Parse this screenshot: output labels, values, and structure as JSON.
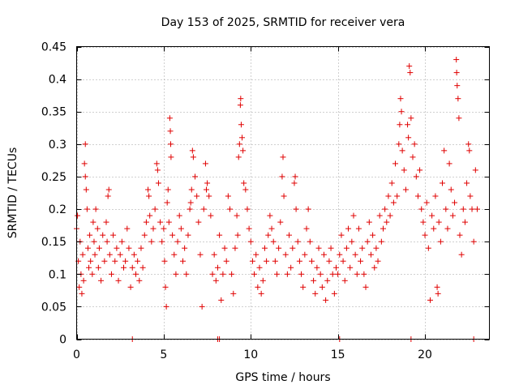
{
  "chart_data": {
    "type": "scatter",
    "title": "Day 153 of 2025, SRMTID for receiver vera",
    "xlabel": "GPS time / hours",
    "ylabel": "SRMTID / TECUs",
    "xlim": [
      0,
      23.7
    ],
    "ylim": [
      0,
      0.45
    ],
    "xticks": [
      0,
      5,
      10,
      15,
      20
    ],
    "xtick_labels": [
      "0",
      "5",
      "10",
      "15",
      "20"
    ],
    "yticks": [
      0,
      0.05,
      0.1,
      0.15,
      0.2,
      0.25,
      0.3,
      0.35,
      0.4,
      0.45
    ],
    "ytick_labels": [
      "0",
      "0.05",
      "0.1",
      "0.15",
      "0.2",
      "0.25",
      "0.3",
      "0.35",
      "0.4",
      "0.45"
    ],
    "grid": true,
    "marker": "+",
    "marker_color": "#e00000",
    "series": [
      {
        "name": "SRMTID",
        "points": [
          [
            0.0,
            0.17
          ],
          [
            0.05,
            0.19
          ],
          [
            0.1,
            0.12
          ],
          [
            0.15,
            0.08
          ],
          [
            0.2,
            0.15
          ],
          [
            0.25,
            0.1
          ],
          [
            0.3,
            0.07
          ],
          [
            0.35,
            0.13
          ],
          [
            0.4,
            0.09
          ],
          [
            0.45,
            0.27
          ],
          [
            0.5,
            0.3
          ],
          [
            0.5,
            0.25
          ],
          [
            0.55,
            0.23
          ],
          [
            0.6,
            0.2
          ],
          [
            0.65,
            0.14
          ],
          [
            0.7,
            0.11
          ],
          [
            0.75,
            0.16
          ],
          [
            0.8,
            0.12
          ],
          [
            0.9,
            0.1
          ],
          [
            0.95,
            0.18
          ],
          [
            1.0,
            0.15
          ],
          [
            1.05,
            0.13
          ],
          [
            1.1,
            0.2
          ],
          [
            1.2,
            0.17
          ],
          [
            1.25,
            0.11
          ],
          [
            1.3,
            0.14
          ],
          [
            1.4,
            0.09
          ],
          [
            1.5,
            0.16
          ],
          [
            1.6,
            0.12
          ],
          [
            1.7,
            0.18
          ],
          [
            1.75,
            0.15
          ],
          [
            1.8,
            0.22
          ],
          [
            1.85,
            0.23
          ],
          [
            1.9,
            0.13
          ],
          [
            2.0,
            0.1
          ],
          [
            2.1,
            0.16
          ],
          [
            2.2,
            0.12
          ],
          [
            2.3,
            0.14
          ],
          [
            2.4,
            0.09
          ],
          [
            2.5,
            0.13
          ],
          [
            2.6,
            0.15
          ],
          [
            2.7,
            0.11
          ],
          [
            2.8,
            0.12
          ],
          [
            2.9,
            0.17
          ],
          [
            3.0,
            0.14
          ],
          [
            3.1,
            0.08
          ],
          [
            3.2,
            0.11
          ],
          [
            3.3,
            0.13
          ],
          [
            3.4,
            0.1
          ],
          [
            3.5,
            0.12
          ],
          [
            3.6,
            0.09
          ],
          [
            3.7,
            0.14
          ],
          [
            3.8,
            0.11
          ],
          [
            3.9,
            0.16
          ],
          [
            4.0,
            0.18
          ],
          [
            4.1,
            0.23
          ],
          [
            4.15,
            0.22
          ],
          [
            4.2,
            0.19
          ],
          [
            4.3,
            0.15
          ],
          [
            4.4,
            0.17
          ],
          [
            4.5,
            0.2
          ],
          [
            4.6,
            0.27
          ],
          [
            4.65,
            0.26
          ],
          [
            4.7,
            0.24
          ],
          [
            4.8,
            0.18
          ],
          [
            4.9,
            0.15
          ],
          [
            5.0,
            0.17
          ],
          [
            5.05,
            0.12
          ],
          [
            5.1,
            0.08
          ],
          [
            5.15,
            0.05
          ],
          [
            5.2,
            0.21
          ],
          [
            5.25,
            0.23
          ],
          [
            5.3,
            0.18
          ],
          [
            5.35,
            0.34
          ],
          [
            5.38,
            0.32
          ],
          [
            5.4,
            0.3
          ],
          [
            5.42,
            0.28
          ],
          [
            5.5,
            0.16
          ],
          [
            5.6,
            0.13
          ],
          [
            5.7,
            0.1
          ],
          [
            5.8,
            0.15
          ],
          [
            5.9,
            0.19
          ],
          [
            6.0,
            0.17
          ],
          [
            6.1,
            0.12
          ],
          [
            6.2,
            0.14
          ],
          [
            6.3,
            0.1
          ],
          [
            6.4,
            0.16
          ],
          [
            6.5,
            0.2
          ],
          [
            6.55,
            0.21
          ],
          [
            6.6,
            0.23
          ],
          [
            6.65,
            0.29
          ],
          [
            6.7,
            0.28
          ],
          [
            6.8,
            0.25
          ],
          [
            6.9,
            0.22
          ],
          [
            7.0,
            0.18
          ],
          [
            7.1,
            0.13
          ],
          [
            7.2,
            0.05
          ],
          [
            7.3,
            0.2
          ],
          [
            7.4,
            0.27
          ],
          [
            7.45,
            0.23
          ],
          [
            7.5,
            0.24
          ],
          [
            7.6,
            0.22
          ],
          [
            7.7,
            0.19
          ],
          [
            7.8,
            0.1
          ],
          [
            7.9,
            0.13
          ],
          [
            8.0,
            0.09
          ],
          [
            8.1,
            0.11
          ],
          [
            8.2,
            0.16
          ],
          [
            8.3,
            0.06
          ],
          [
            8.4,
            0.1
          ],
          [
            8.5,
            0.14
          ],
          [
            8.6,
            0.12
          ],
          [
            8.7,
            0.22
          ],
          [
            8.8,
            0.2
          ],
          [
            8.9,
            0.1
          ],
          [
            9.0,
            0.07
          ],
          [
            9.1,
            0.14
          ],
          [
            9.2,
            0.19
          ],
          [
            9.25,
            0.16
          ],
          [
            9.3,
            0.28
          ],
          [
            9.35,
            0.3
          ],
          [
            9.4,
            0.36
          ],
          [
            9.42,
            0.37
          ],
          [
            9.45,
            0.33
          ],
          [
            9.5,
            0.31
          ],
          [
            9.55,
            0.29
          ],
          [
            9.6,
            0.24
          ],
          [
            9.7,
            0.23
          ],
          [
            9.8,
            0.2
          ],
          [
            9.9,
            0.17
          ],
          [
            10.0,
            0.15
          ],
          [
            10.1,
            0.12
          ],
          [
            10.2,
            0.1
          ],
          [
            10.3,
            0.13
          ],
          [
            10.4,
            0.08
          ],
          [
            10.5,
            0.11
          ],
          [
            10.6,
            0.07
          ],
          [
            10.7,
            0.09
          ],
          [
            10.8,
            0.14
          ],
          [
            10.9,
            0.12
          ],
          [
            11.0,
            0.16
          ],
          [
            11.1,
            0.19
          ],
          [
            11.2,
            0.17
          ],
          [
            11.3,
            0.15
          ],
          [
            11.4,
            0.12
          ],
          [
            11.5,
            0.1
          ],
          [
            11.6,
            0.14
          ],
          [
            11.7,
            0.18
          ],
          [
            11.8,
            0.25
          ],
          [
            11.85,
            0.28
          ],
          [
            11.9,
            0.22
          ],
          [
            12.0,
            0.13
          ],
          [
            12.1,
            0.1
          ],
          [
            12.2,
            0.16
          ],
          [
            12.3,
            0.11
          ],
          [
            12.4,
            0.14
          ],
          [
            12.5,
            0.24
          ],
          [
            12.55,
            0.25
          ],
          [
            12.6,
            0.2
          ],
          [
            12.7,
            0.15
          ],
          [
            12.8,
            0.12
          ],
          [
            12.9,
            0.1
          ],
          [
            13.0,
            0.08
          ],
          [
            13.1,
            0.13
          ],
          [
            13.2,
            0.17
          ],
          [
            13.3,
            0.2
          ],
          [
            13.4,
            0.15
          ],
          [
            13.5,
            0.12
          ],
          [
            13.6,
            0.09
          ],
          [
            13.7,
            0.07
          ],
          [
            13.8,
            0.11
          ],
          [
            13.9,
            0.14
          ],
          [
            14.0,
            0.1
          ],
          [
            14.1,
            0.08
          ],
          [
            14.2,
            0.13
          ],
          [
            14.3,
            0.06
          ],
          [
            14.4,
            0.09
          ],
          [
            14.5,
            0.12
          ],
          [
            14.6,
            0.14
          ],
          [
            14.7,
            0.1
          ],
          [
            14.8,
            0.07
          ],
          [
            14.9,
            0.11
          ],
          [
            15.0,
            0.1
          ],
          [
            15.1,
            0.13
          ],
          [
            15.2,
            0.16
          ],
          [
            15.3,
            0.12
          ],
          [
            15.4,
            0.09
          ],
          [
            15.5,
            0.14
          ],
          [
            15.6,
            0.17
          ],
          [
            15.7,
            0.11
          ],
          [
            15.8,
            0.15
          ],
          [
            15.9,
            0.19
          ],
          [
            16.0,
            0.13
          ],
          [
            16.1,
            0.1
          ],
          [
            16.2,
            0.17
          ],
          [
            16.3,
            0.12
          ],
          [
            16.4,
            0.14
          ],
          [
            16.5,
            0.1
          ],
          [
            16.6,
            0.08
          ],
          [
            16.7,
            0.15
          ],
          [
            16.8,
            0.18
          ],
          [
            16.9,
            0.13
          ],
          [
            17.0,
            0.16
          ],
          [
            17.1,
            0.11
          ],
          [
            17.2,
            0.14
          ],
          [
            17.3,
            0.12
          ],
          [
            17.4,
            0.19
          ],
          [
            17.5,
            0.15
          ],
          [
            17.6,
            0.17
          ],
          [
            17.7,
            0.2
          ],
          [
            17.8,
            0.18
          ],
          [
            17.9,
            0.22
          ],
          [
            18.0,
            0.19
          ],
          [
            18.1,
            0.24
          ],
          [
            18.2,
            0.21
          ],
          [
            18.3,
            0.27
          ],
          [
            18.4,
            0.22
          ],
          [
            18.5,
            0.3
          ],
          [
            18.55,
            0.33
          ],
          [
            18.6,
            0.37
          ],
          [
            18.65,
            0.35
          ],
          [
            18.7,
            0.29
          ],
          [
            18.8,
            0.26
          ],
          [
            18.9,
            0.23
          ],
          [
            19.0,
            0.33
          ],
          [
            19.05,
            0.31
          ],
          [
            19.1,
            0.42
          ],
          [
            19.15,
            0.41
          ],
          [
            19.2,
            0.34
          ],
          [
            19.3,
            0.28
          ],
          [
            19.4,
            0.3
          ],
          [
            19.5,
            0.25
          ],
          [
            19.6,
            0.22
          ],
          [
            19.7,
            0.26
          ],
          [
            19.8,
            0.2
          ],
          [
            19.9,
            0.18
          ],
          [
            20.0,
            0.16
          ],
          [
            20.1,
            0.21
          ],
          [
            20.2,
            0.14
          ],
          [
            20.3,
            0.06
          ],
          [
            20.4,
            0.19
          ],
          [
            20.5,
            0.17
          ],
          [
            20.6,
            0.22
          ],
          [
            20.7,
            0.08
          ],
          [
            20.75,
            0.07
          ],
          [
            20.8,
            0.18
          ],
          [
            20.9,
            0.15
          ],
          [
            21.0,
            0.24
          ],
          [
            21.1,
            0.29
          ],
          [
            21.2,
            0.2
          ],
          [
            21.3,
            0.17
          ],
          [
            21.4,
            0.27
          ],
          [
            21.5,
            0.23
          ],
          [
            21.6,
            0.19
          ],
          [
            21.7,
            0.21
          ],
          [
            21.8,
            0.43
          ],
          [
            21.82,
            0.41
          ],
          [
            21.85,
            0.39
          ],
          [
            21.9,
            0.37
          ],
          [
            21.95,
            0.34
          ],
          [
            22.0,
            0.16
          ],
          [
            22.1,
            0.13
          ],
          [
            22.2,
            0.2
          ],
          [
            22.3,
            0.18
          ],
          [
            22.4,
            0.24
          ],
          [
            22.5,
            0.3
          ],
          [
            22.55,
            0.29
          ],
          [
            22.6,
            0.22
          ],
          [
            22.7,
            0.2
          ],
          [
            22.8,
            0.15
          ],
          [
            22.9,
            0.26
          ],
          [
            23.0,
            0.2
          ]
        ]
      }
    ],
    "zero_points": [
      3.2,
      8.1,
      8.2,
      15.1,
      19.2,
      22.8
    ]
  }
}
